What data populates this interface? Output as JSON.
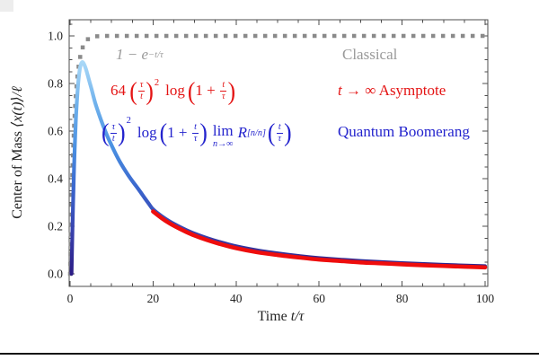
{
  "axes": {
    "x_label_plain": "Time ",
    "x_label_math": "t/τ",
    "y_label_plain": "Center of Mass ",
    "y_label_math": "⟨x(t)⟩/ℓ"
  },
  "legend": {
    "classical": "Classical",
    "asymptote_t": "t",
    "asymptote_rest": " → ∞ Asymptote",
    "boomerang": "Quantum Boomerang"
  },
  "formulas": {
    "syms": {
      "lp": "(",
      "rp": ")"
    },
    "classical": {
      "base": "1 − e",
      "exp": "−t/τ"
    },
    "asymptote": {
      "coeff": "64",
      "f1n": "τ",
      "f1d": "t",
      "pow": "2",
      "op": "log",
      "inner": "1 +",
      "f2n": "t",
      "f2d": "τ"
    },
    "boomerang": {
      "f1n": "τ",
      "f1d": "t",
      "pow": "2",
      "op": "log",
      "inner": "1 +",
      "f2n": "t",
      "f2d": "τ",
      "lim": "lim",
      "limsub": "n→∞",
      "pade": "R",
      "padesub": "[n/n]",
      "f3n": "t",
      "f3d": "τ"
    }
  },
  "chart_data": {
    "type": "line",
    "title": "",
    "xlabel": "Time t/τ",
    "ylabel": "Center of Mass ⟨x(t)⟩/ℓ",
    "xlim": [
      0,
      100
    ],
    "ylim": [
      0,
      1.0
    ],
    "grid": false,
    "legend_position": "overlay-top-right",
    "frame_color": "#4d4d4d",
    "tick_label_color": "#222222",
    "x_ticks": [
      0,
      20,
      40,
      60,
      80,
      100
    ],
    "x_tick_labels": [
      "0",
      "20",
      "40",
      "60",
      "80",
      "100"
    ],
    "x_minor_step": 5,
    "y_ticks": [
      0,
      0.2,
      0.4,
      0.6,
      0.8,
      1.0
    ],
    "y_tick_labels": [
      "0.0",
      "0.2",
      "0.4",
      "0.6",
      "0.8",
      "1.0"
    ],
    "y_minor_step": 0.05,
    "series": [
      {
        "id": "classical",
        "name": "Classical",
        "formula_label": "1 − e^(−t/τ)",
        "style": "dotted",
        "color": "#8a8a8a",
        "x": [
          0,
          0.2,
          0.4,
          0.6,
          0.8,
          1,
          1.25,
          1.5,
          1.75,
          2,
          2.5,
          3,
          3.5,
          4,
          4.5,
          5,
          6,
          7,
          8,
          10,
          15,
          20,
          25,
          30,
          35,
          40,
          45,
          50,
          55,
          60,
          65,
          70,
          75,
          80,
          85,
          90,
          95,
          100
        ],
        "y": [
          0,
          0.181,
          0.33,
          0.451,
          0.551,
          0.632,
          0.713,
          0.777,
          0.826,
          0.865,
          0.918,
          0.95,
          0.97,
          0.982,
          0.989,
          0.993,
          0.998,
          0.999,
          1,
          1,
          1,
          1,
          1,
          1,
          1,
          1,
          1,
          1,
          1,
          1,
          1,
          1,
          1,
          1,
          1,
          1,
          1,
          1
        ]
      },
      {
        "id": "boomerang",
        "name": "Quantum Boomerang",
        "formula_label": "(τ/t)² log(1 + t/τ) lim n→∞ R[n/n](t/τ)",
        "style": "solid-gradient",
        "gradient_colors": [
          "#a9d8f7",
          "#6fb1ec",
          "#4a90e2",
          "#3a64cc",
          "#3840ac",
          "#2b1b84"
        ],
        "x": [
          0.35,
          0.5,
          0.7,
          0.9,
          1.1,
          1.4,
          1.7,
          2.0,
          2.3,
          2.6,
          3.0,
          3.4,
          3.8,
          4.2,
          4.7,
          5.2,
          6,
          7,
          8,
          9,
          10,
          11,
          12,
          13,
          14,
          15,
          16,
          17,
          18,
          19,
          20,
          22,
          24,
          26,
          28,
          30,
          33,
          36,
          40,
          45,
          50,
          55,
          60,
          70,
          80,
          90,
          100
        ],
        "y": [
          0.0,
          0.13,
          0.28,
          0.41,
          0.52,
          0.65,
          0.74,
          0.81,
          0.855,
          0.88,
          0.89,
          0.88,
          0.862,
          0.838,
          0.806,
          0.775,
          0.722,
          0.669,
          0.621,
          0.578,
          0.54,
          0.504,
          0.471,
          0.442,
          0.415,
          0.39,
          0.367,
          0.343,
          0.318,
          0.294,
          0.271,
          0.243,
          0.22,
          0.201,
          0.184,
          0.169,
          0.15,
          0.134,
          0.116,
          0.099,
          0.086,
          0.075,
          0.066,
          0.054,
          0.045,
          0.038,
          0.032
        ]
      },
      {
        "id": "asymptote",
        "name": "t → ∞ Asymptote",
        "formula_label": "64 (τ/t)² log(1 + t/τ)",
        "style": "solid",
        "color": "#ee0d0d",
        "x": [
          20,
          22,
          24,
          26,
          28,
          30,
          33,
          36,
          40,
          45,
          50,
          55,
          60,
          65,
          70,
          75,
          80,
          85,
          90,
          95,
          100
        ],
        "y": [
          0.262,
          0.235,
          0.212,
          0.193,
          0.176,
          0.161,
          0.142,
          0.126,
          0.108,
          0.091,
          0.079,
          0.069,
          0.06,
          0.054,
          0.048,
          0.044,
          0.04,
          0.036,
          0.033,
          0.03,
          0.027
        ]
      }
    ]
  }
}
